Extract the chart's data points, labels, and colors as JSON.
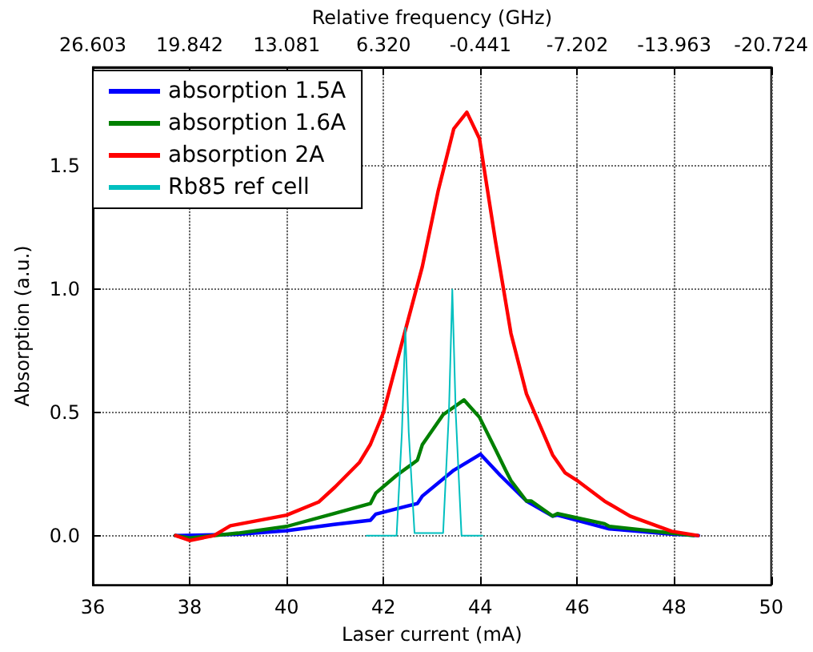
{
  "chart_data": {
    "type": "line",
    "xlabel": "Laser current (mA)",
    "ylabel": "Absorption (a.u.)",
    "x2label": "Relative frequency (GHz)",
    "xlim": [
      36,
      50
    ],
    "xticks": [
      36,
      38,
      40,
      42,
      44,
      46,
      48,
      50
    ],
    "x2lim": [
      26.603,
      -20.724
    ],
    "x2ticks": [
      26.603,
      19.842,
      13.081,
      {
        "value": 6.32,
        "label": "6.320"
      },
      -0.441,
      -7.202,
      -13.963,
      -20.724
    ],
    "ylim": [
      -0.2,
      1.9
    ],
    "yticks": [
      {
        "value": 0,
        "label": "0.0"
      },
      {
        "value": 0.5,
        "label": "0.5"
      },
      {
        "value": 1,
        "label": "1.0"
      },
      {
        "value": 1.5,
        "label": "1.5"
      }
    ],
    "grid": true,
    "legend": "top left",
    "series": [
      {
        "name": "absorption 1.5A",
        "color": "#0000ff",
        "x": [
          37.7,
          39,
          40,
          40.98,
          41.73,
          41.84,
          42.7,
          42.8,
          43.45,
          44.0,
          44.41,
          44.95,
          45.49,
          45.59,
          46.66,
          47.94,
          48.5
        ],
        "values": [
          0,
          0.005,
          0.02,
          0.045,
          0.062,
          0.087,
          0.13,
          0.16,
          0.265,
          0.33,
          0.244,
          0.14,
          0.079,
          0.083,
          0.027,
          0.006,
          0
        ]
      },
      {
        "name": "absorption 1.6A",
        "color": "#008000",
        "x": [
          37.7,
          38,
          39,
          40,
          40.98,
          41.73,
          41.84,
          42.27,
          42.7,
          42.8,
          43.23,
          43.66,
          43.98,
          44.31,
          44.52,
          44.63,
          44.95,
          45.05,
          45.49,
          45.59,
          46.56,
          46.66,
          47.94,
          48.4
        ],
        "values": [
          0,
          -0.01,
          0.01,
          0.037,
          0.089,
          0.13,
          0.172,
          0.244,
          0.306,
          0.368,
          0.49,
          0.55,
          0.48,
          0.35,
          0.265,
          0.223,
          0.14,
          0.14,
          0.079,
          0.089,
          0.048,
          0.037,
          0.01,
          0
        ]
      },
      {
        "name": "absorption 2A",
        "color": "#ff0000",
        "x": [
          37.71,
          38,
          38.5,
          38.84,
          40,
          40.66,
          41,
          41.5,
          41.73,
          42,
          42.27,
          42.8,
          43.13,
          43.45,
          43.72,
          43.98,
          44.31,
          44.63,
          44.95,
          45.49,
          45.75,
          46.02,
          46.56,
          47.09,
          47.95,
          48.49
        ],
        "values": [
          0,
          -0.02,
          0,
          0.04,
          0.083,
          0.136,
          0.197,
          0.296,
          0.37,
          0.5,
          0.7,
          1.09,
          1.4,
          1.65,
          1.717,
          1.61,
          1.195,
          0.82,
          0.575,
          0.327,
          0.254,
          0.22,
          0.14,
          0.079,
          0.017,
          0
        ]
      },
      {
        "name": "Rb85 ref cell",
        "color": "#00bfbf",
        "x": [
          41.65,
          42.27,
          42.38,
          42.45,
          42.52,
          42.64,
          43.23,
          43.35,
          43.42,
          43.49,
          43.61,
          44.04
        ],
        "values": [
          0,
          0,
          0.42,
          0.843,
          0.42,
          0.01,
          0.01,
          0.5,
          0.998,
          0.5,
          0,
          0
        ]
      }
    ]
  }
}
